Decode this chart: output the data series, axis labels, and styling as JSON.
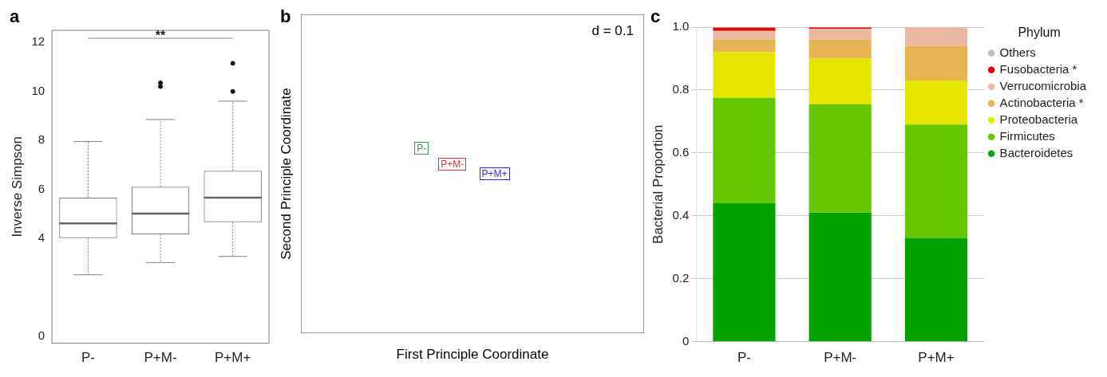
{
  "chart_data": [
    {
      "type": "box",
      "title": "a",
      "ylabel": "Inverse Simpson",
      "categories": [
        "P-",
        "P+M-",
        "P+M+"
      ],
      "color": "#808080",
      "boxes": [
        {
          "low": 2.5,
          "q1": 4.0,
          "median": 4.6,
          "q3": 5.65,
          "high": 7.95
        },
        {
          "low": 3.0,
          "q1": 4.15,
          "median": 5.0,
          "q3": 6.1,
          "high": 8.85,
          "outliers": [
            10.35,
            10.2
          ]
        },
        {
          "low": 3.25,
          "q1": 4.65,
          "median": 5.65,
          "q3": 6.75,
          "high": 9.6,
          "outliers": [
            11.15,
            10.0
          ]
        }
      ],
      "ylim": [
        -0.3,
        12.5
      ],
      "yticks": [
        0,
        4,
        6,
        8,
        10,
        12
      ],
      "annotations": [
        "**"
      ]
    },
    {
      "type": "other",
      "title": "b",
      "subtitle": "d = 0.1",
      "xlabel": "First Principle Coordinate",
      "ylabel": "Second Principle Coordinate",
      "annotations": [
        "P-",
        "P+M-",
        "P+M+"
      ]
    },
    {
      "type": "bar",
      "title": "c",
      "ylabel": "Bacterial Proportion",
      "legend_title": "Phylum",
      "categories": [
        "P-",
        "P+M-",
        "P+M+"
      ],
      "stacked": true,
      "series": [
        {
          "name": "Bacteroidetes",
          "color": "#00a300",
          "values": [
            0.44,
            0.41,
            0.33
          ]
        },
        {
          "name": "Firmicutes",
          "color": "#66c800",
          "values": [
            0.335,
            0.345,
            0.36
          ]
        },
        {
          "name": "Proteobacteria",
          "color": "#e6e600",
          "values": [
            0.145,
            0.145,
            0.14
          ]
        },
        {
          "name": "Actinobacteria *",
          "color": "#e6b450",
          "values": [
            0.04,
            0.06,
            0.11
          ]
        },
        {
          "name": "Verrucomicrobia",
          "color": "#ebb8a0",
          "values": [
            0.028,
            0.035,
            0.06
          ]
        },
        {
          "name": "Fusobacteria *",
          "color": "#e60000",
          "values": [
            0.01,
            0.004,
            0
          ]
        },
        {
          "name": "Others",
          "color": "#bebebe",
          "values": [
            null,
            null,
            0
          ]
        }
      ],
      "ylim": [
        0,
        1
      ],
      "yticks": [
        0,
        0.2,
        0.4,
        0.6,
        0.8,
        {
          "value": 1,
          "label": "1.0"
        }
      ],
      "grid": "y",
      "legend": "right"
    }
  ]
}
